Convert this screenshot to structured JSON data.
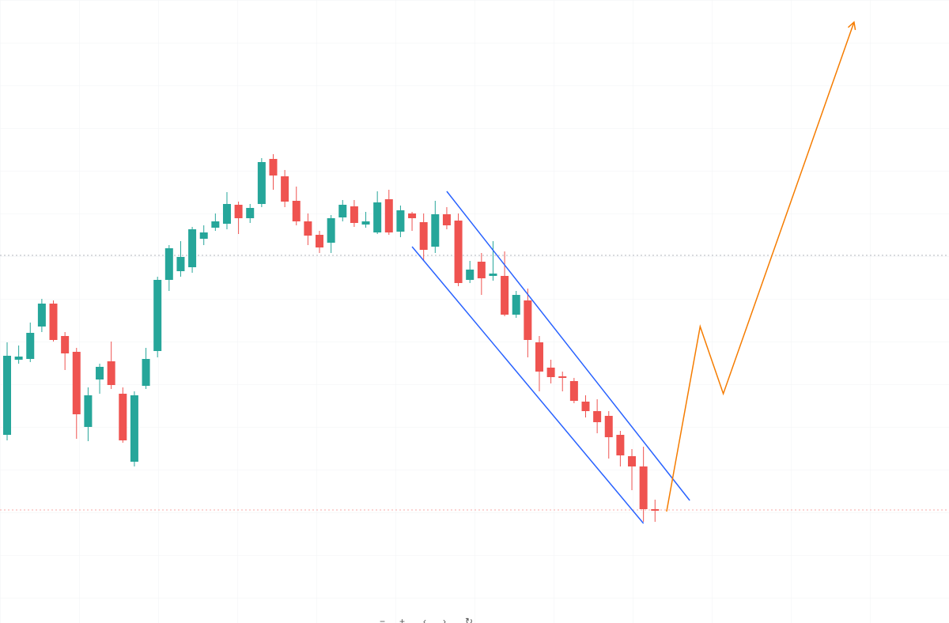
{
  "chart_data": {
    "type": "candlestick",
    "open": [
      238,
      333,
      334,
      375,
      404,
      363,
      343,
      248,
      308,
      331,
      290,
      204,
      300,
      344,
      434,
      445,
      450,
      486,
      500,
      505,
      529,
      512,
      530,
      587,
      565,
      534,
      508,
      491,
      481,
      513,
      527,
      504,
      494,
      536,
      495,
      518,
      507,
      476,
      517,
      509,
      434,
      457,
      439,
      439,
      390,
      408,
      355,
      323,
      312,
      306,
      280,
      268,
      262,
      238,
      211,
      198,
      144
    ],
    "high": [
      355,
      351,
      380,
      410,
      408,
      368,
      348,
      298,
      328,
      356,
      298,
      293,
      348,
      438,
      478,
      483,
      501,
      503,
      518,
      545,
      533,
      530,
      588,
      593,
      573,
      552,
      518,
      496,
      516,
      535,
      535,
      520,
      546,
      548,
      528,
      520,
      518,
      534,
      526,
      518,
      458,
      468,
      483,
      470,
      420,
      423,
      363,
      333,
      318,
      310,
      288,
      283,
      268,
      243,
      220,
      223,
      156
    ],
    "low": [
      231,
      328,
      330,
      368,
      356,
      320,
      233,
      230,
      290,
      296,
      228,
      198,
      296,
      336,
      420,
      438,
      443,
      478,
      496,
      498,
      492,
      506,
      526,
      548,
      526,
      503,
      478,
      468,
      468,
      508,
      501,
      500,
      492,
      491,
      488,
      496,
      458,
      468,
      498,
      426,
      430,
      415,
      433,
      388,
      386,
      336,
      293,
      303,
      293,
      278,
      260,
      240,
      208,
      198,
      168,
      128,
      128
    ],
    "close": [
      338,
      337,
      367,
      404,
      358,
      341,
      264,
      288,
      324,
      301,
      231,
      288,
      334,
      434,
      474,
      463,
      498,
      494,
      508,
      530,
      512,
      525,
      583,
      566,
      533,
      508,
      490,
      475,
      512,
      529,
      506,
      508,
      532,
      494,
      522,
      512,
      472,
      517,
      503,
      430,
      447,
      436,
      442,
      390,
      415,
      358,
      318,
      311,
      310,
      281,
      268,
      254,
      235,
      212,
      198,
      144,
      142
    ],
    "up_color": "#26a69a",
    "down_color": "#ef5350",
    "ylim": [
      0,
      788
    ],
    "price_lines": [
      {
        "value": 465,
        "color": "#b2b5be"
      },
      {
        "value": 143,
        "color": "#f7a9a7"
      }
    ],
    "drawings": [
      {
        "color": "#2962ff",
        "x": [
          38.0,
          59.0
        ],
        "y": [
          546,
          155
        ]
      },
      {
        "color": "#2962ff",
        "x": [
          35.0,
          55.0
        ],
        "y": [
          476,
          126
        ]
      },
      {
        "color": "#f57c00",
        "x": [
          57.0,
          59.9,
          61.9,
          73.2
        ],
        "y": [
          141,
          375,
          290,
          760
        ],
        "arrow": true
      }
    ]
  }
}
